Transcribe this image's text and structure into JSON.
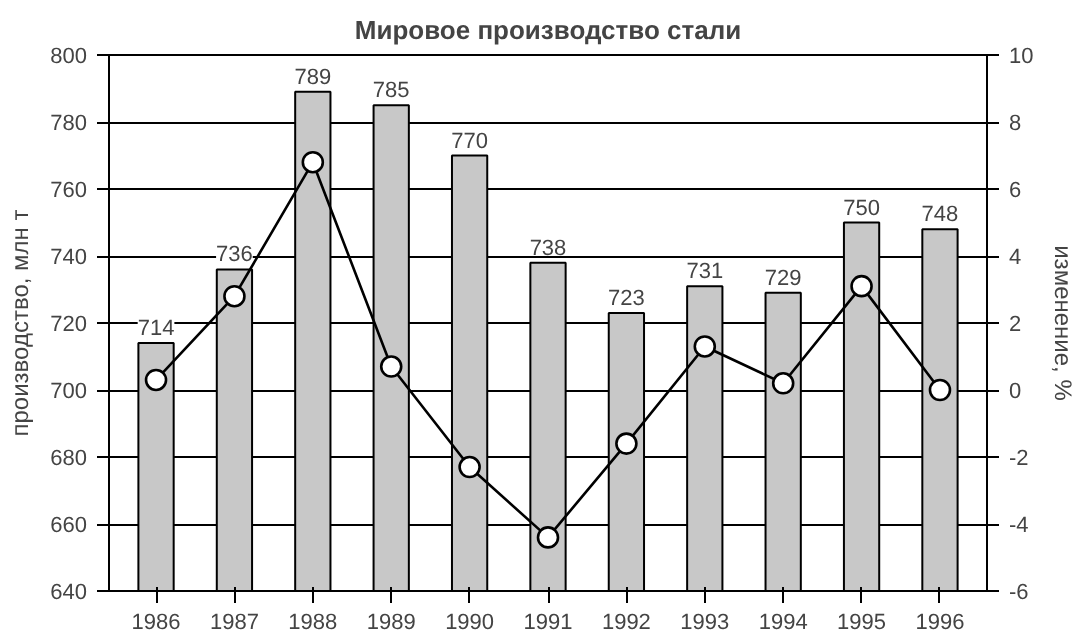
{
  "chart_data": {
    "type": "bar",
    "title": "Мировое производство стали",
    "ylabel": "производство, млн т",
    "y2label": "изменение, %",
    "categories": [
      "1986",
      "1987",
      "1988",
      "1989",
      "1990",
      "1991",
      "1992",
      "1993",
      "1994",
      "1995",
      "1996"
    ],
    "series": [
      {
        "color": "#c8c8c8",
        "values": [
          714,
          736,
          789,
          785,
          770,
          738,
          723,
          731,
          729,
          750,
          748
        ],
        "data_labels": true
      },
      {
        "type": "line",
        "axis": "y2",
        "color": "#000000",
        "marker": "circle",
        "values": [
          0.3,
          2.8,
          6.8,
          0.7,
          -2.3,
          -4.4,
          -1.6,
          1.3,
          0.2,
          3.1,
          0.0
        ]
      }
    ],
    "ylim": [
      640,
      800
    ],
    "yticks": [
      640,
      660,
      680,
      700,
      720,
      740,
      760,
      780,
      800
    ],
    "y2lim": [
      -6,
      10
    ],
    "y2ticks": [
      -6,
      -4,
      -2,
      0,
      2,
      4,
      6,
      8,
      10
    ],
    "grid": "y"
  }
}
